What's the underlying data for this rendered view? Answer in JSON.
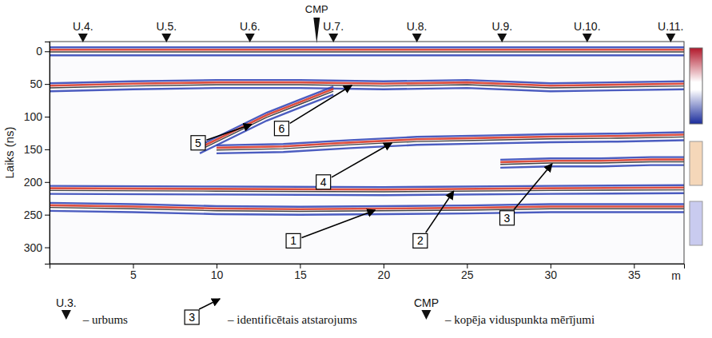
{
  "chart_data": {
    "type": "radargram",
    "x_label": "m",
    "y_label": "Laiks (ns)",
    "xlim": [
      0,
      38
    ],
    "xticks": [
      5,
      10,
      15,
      20,
      25,
      30,
      35
    ],
    "ylim": [
      -15,
      325
    ],
    "yticks": [
      0,
      50,
      100,
      150,
      200,
      250,
      300
    ],
    "boreholes": {
      "labels": [
        "U.4.",
        "U.5.",
        "U.6.",
        "U.7.",
        "U.8.",
        "U.9.",
        "U.10.",
        "U.11."
      ],
      "x": [
        2,
        7,
        12,
        17,
        22,
        27.1,
        32.2,
        37.2
      ]
    },
    "cmp": {
      "label": "CMP",
      "x": 16
    },
    "reflectors": [
      {
        "x": [
          0,
          38
        ],
        "values": [
          0,
          0
        ]
      },
      {
        "x": [
          0,
          5,
          10,
          15,
          20,
          25,
          30,
          38
        ],
        "values": [
          55,
          52,
          50,
          50,
          52,
          50,
          55,
          52
        ]
      },
      {
        "x": [
          9,
          11,
          13,
          15,
          17
        ],
        "values": [
          150,
          125,
          100,
          80,
          60
        ]
      },
      {
        "x": [
          10,
          14,
          18,
          22,
          26,
          30,
          34,
          38
        ],
        "values": [
          150,
          148,
          142,
          137,
          135,
          133,
          132,
          130
        ]
      },
      {
        "x": [
          27,
          30,
          33,
          36,
          38
        ],
        "values": [
          172,
          170,
          170,
          168,
          168
        ]
      },
      {
        "x": [
          0,
          10,
          20,
          30,
          38
        ],
        "values": [
          212,
          213,
          214,
          212,
          211
        ]
      },
      {
        "x": [
          0,
          5,
          10,
          15,
          20,
          25,
          30,
          38
        ],
        "values": [
          238,
          240,
          243,
          244,
          243,
          242,
          240,
          240
        ]
      }
    ],
    "annotations": [
      {
        "label": "1",
        "x": 14.6,
        "y": 290,
        "tip_x": 19.5,
        "tip_y": 243
      },
      {
        "label": "2",
        "x": 22.2,
        "y": 290,
        "tip_x": 24.2,
        "tip_y": 214
      },
      {
        "label": "3",
        "x": 27.4,
        "y": 255,
        "tip_x": 30.1,
        "tip_y": 172
      },
      {
        "label": "4",
        "x": 16.4,
        "y": 200,
        "tip_x": 20.5,
        "tip_y": 140
      },
      {
        "label": "5",
        "x": 8.9,
        "y": 140,
        "tip_x": 12.1,
        "tip_y": 112
      },
      {
        "label": "6",
        "x": 13.9,
        "y": 118,
        "tip_x": 18.1,
        "tip_y": 52
      }
    ],
    "legend": "bottom",
    "legend_items": [
      {
        "marker": "triangle",
        "label": "U.3.",
        "text": "– urbums"
      },
      {
        "marker": "arrow",
        "label": "3",
        "text": "– identificētais atstarojums"
      },
      {
        "marker": "triangle",
        "label": "CMP",
        "text": "– kopēja viduspunkta mērījumi"
      }
    ]
  }
}
